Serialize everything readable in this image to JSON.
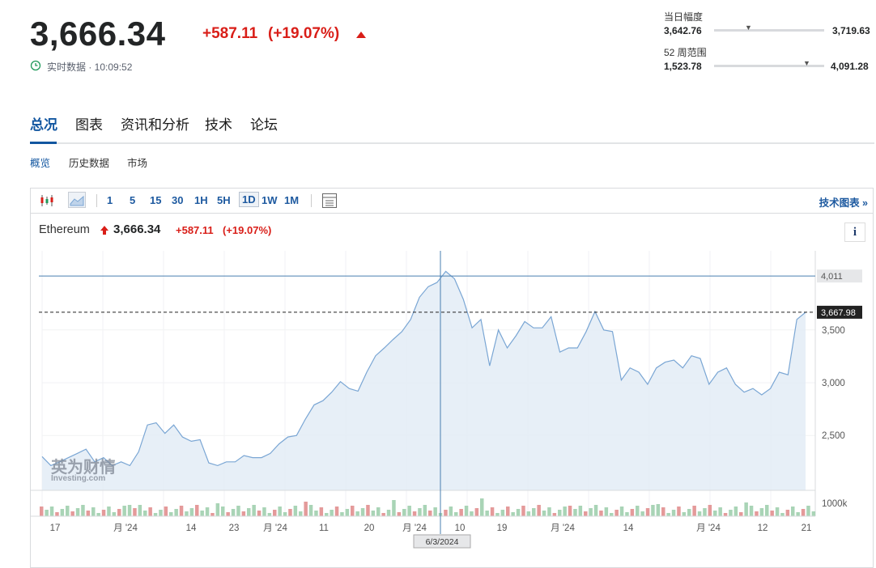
{
  "header": {
    "price": "3,666.34",
    "change": "+587.11",
    "change_pct": "(+19.07%)",
    "status": "实时数据 · 10:09:52"
  },
  "ranges": [
    {
      "label": "当日幅度",
      "low": "3,642.76",
      "high": "3,719.63"
    },
    {
      "label": "52 周范围",
      "low": "1,523.78",
      "high": "4,091.28"
    }
  ],
  "tabs": [
    "总况",
    "图表",
    "资讯和分析",
    "技术",
    "论坛"
  ],
  "subtabs": [
    "概览",
    "历史数据",
    "市场"
  ],
  "toolbar": {
    "intervals": [
      "1",
      "5",
      "15",
      "30",
      "1H",
      "5H",
      "1D",
      "1W",
      "1M"
    ],
    "link": "技术图表 »"
  },
  "chart_data": {
    "type": "area",
    "title": "Ethereum",
    "price": "3,666.34",
    "change": "+587.11",
    "change_pct": "(+19.07%)",
    "values": [
      2300,
      2215,
      2250,
      2290,
      2330,
      2370,
      2250,
      2290,
      2215,
      2250,
      2215,
      2345,
      2600,
      2620,
      2520,
      2600,
      2485,
      2445,
      2460,
      2240,
      2215,
      2250,
      2250,
      2310,
      2290,
      2290,
      2330,
      2420,
      2485,
      2500,
      2655,
      2790,
      2830,
      2910,
      3010,
      2945,
      2920,
      3100,
      3255,
      3330,
      3410,
      3485,
      3600,
      3810,
      3910,
      3950,
      4055,
      3985,
      3790,
      3520,
      3600,
      3160,
      3500,
      3330,
      3445,
      3580,
      3520,
      3520,
      3625,
      3290,
      3330,
      3330,
      3485,
      3675,
      3500,
      3485,
      3025,
      3140,
      3100,
      2985,
      3140,
      3195,
      3215,
      3140,
      3255,
      3230,
      2985,
      3100,
      3140,
      2985,
      2910,
      2945,
      2885,
      2945,
      3100,
      3075,
      3600,
      3667
    ],
    "color": "#7aa6d4",
    "ylim": [
      1980,
      4250
    ],
    "yticks": [
      {
        "value": 2500,
        "label": "2,500"
      },
      {
        "value": 3000,
        "label": "3,000"
      },
      {
        "value": 3500,
        "label": "3,500"
      }
    ],
    "reference_lines": [
      {
        "value": 4011,
        "label": "4,011"
      },
      {
        "value": 3667.98,
        "label": "3,667.98"
      }
    ],
    "volume_axis_label": "1000k",
    "x_labels": [
      "17",
      "月 '24",
      "14",
      "23",
      "月 '24",
      "11",
      "20",
      "月 '24",
      "10",
      "19",
      "月 '24",
      "14",
      "月 '24",
      "12",
      "21"
    ],
    "crosshair_label": "6/3/2024",
    "watermark": [
      "英为财情",
      "Investing.com"
    ]
  }
}
